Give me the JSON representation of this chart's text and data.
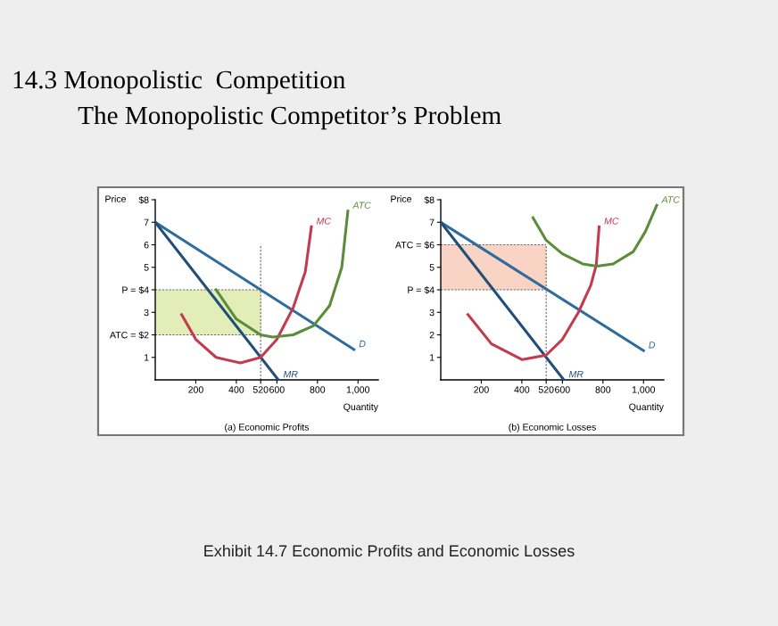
{
  "chart_data": [
    {
      "type": "line",
      "title": "14.3 Monopolistic  Competition",
      "subtitle": "The Monopolistic Competitor’s Problem",
      "xlabel": "Quantity",
      "ylabel": "Price",
      "xlim": [
        0,
        1100
      ],
      "ylim": [
        0,
        8
      ],
      "xticks": [
        200,
        400,
        520,
        600,
        800,
        {
          "value": 1000,
          "label": "1,000"
        }
      ],
      "yticks": [
        1,
        {
          "value": 2,
          "label": "ATC = $2"
        },
        3,
        {
          "value": 4,
          "label": "P = $4"
        },
        5,
        6,
        7,
        {
          "value": 8,
          "label": "$8"
        }
      ],
      "grid": false,
      "series": [
        {
          "name": "D",
          "color": "#2e6b9e",
          "x": [
            0,
            980
          ],
          "values": [
            7,
            1.35
          ]
        },
        {
          "name": "MR",
          "color": "#1f4e79",
          "x": [
            0,
            607
          ],
          "values": [
            7,
            0
          ]
        },
        {
          "name": "MC",
          "color": "#c23b4e",
          "x": [
            130,
            200,
            300,
            420,
            520,
            600,
            680,
            740,
            770
          ],
          "values": [
            2.9,
            1.8,
            1.0,
            0.75,
            1.0,
            1.8,
            3.2,
            4.8,
            6.8
          ]
        },
        {
          "name": "ATC",
          "color": "#5b8c3a",
          "x": [
            300,
            400,
            520,
            580,
            680,
            780,
            860,
            920,
            950
          ],
          "values": [
            4.0,
            2.7,
            2.0,
            1.9,
            2.0,
            2.4,
            3.3,
            5.0,
            7.5
          ]
        }
      ],
      "ref_lines": [
        {
          "axis": "x",
          "value": 520,
          "line_style": "dashed"
        },
        {
          "axis": "y",
          "value": 4,
          "line_style": "dashed"
        },
        {
          "axis": "y",
          "value": 2,
          "line_style": "dashed"
        }
      ],
      "bands": [
        {
          "axis": "y",
          "from": 2,
          "to": 4,
          "color": "#e3edb8"
        }
      ],
      "annotations": [
        "(a) Economic Profits"
      ]
    },
    {
      "type": "line",
      "xlabel": "Quantity",
      "ylabel": "Price",
      "xlim": [
        0,
        1100
      ],
      "ylim": [
        0,
        8
      ],
      "xticks": [
        200,
        400,
        520,
        600,
        800,
        {
          "value": 1000,
          "label": "1,000"
        }
      ],
      "yticks": [
        1,
        2,
        3,
        {
          "value": 4,
          "label": "P = $4"
        },
        5,
        {
          "value": 6,
          "label": "ATC = $6"
        },
        7,
        {
          "value": 8,
          "label": "$8"
        }
      ],
      "grid": false,
      "series": [
        {
          "name": "D",
          "color": "#2e6b9e",
          "x": [
            0,
            1000
          ],
          "values": [
            7,
            1.3
          ]
        },
        {
          "name": "MR",
          "color": "#1f4e79",
          "x": [
            0,
            607
          ],
          "values": [
            7,
            0
          ]
        },
        {
          "name": "MC",
          "color": "#c23b4e",
          "x": [
            134,
            250,
            402,
            520,
            600,
            679,
            740,
            767,
            781
          ],
          "values": [
            2.9,
            1.6,
            0.9,
            1.1,
            1.8,
            3.0,
            4.2,
            5.1,
            6.8
          ]
        },
        {
          "name": "ATC",
          "color": "#5b8c3a",
          "x": [
            455,
            520,
            600,
            700,
            770,
            850,
            950,
            1010,
            1065
          ],
          "values": [
            7.2,
            6.2,
            5.6,
            5.15,
            5.05,
            5.15,
            5.7,
            6.6,
            7.75
          ]
        }
      ],
      "ref_lines": [
        {
          "axis": "x",
          "value": 520,
          "line_style": "dashed"
        },
        {
          "axis": "y",
          "value": 4,
          "line_style": "dashed"
        },
        {
          "axis": "y",
          "value": 6,
          "line_style": "dashed"
        }
      ],
      "bands": [
        {
          "axis": "y",
          "from": 4,
          "to": 6,
          "color": "#f9d3c3"
        }
      ],
      "annotations": [
        "(b) Economic Losses",
        "Exhibit 14.7 Economic Profits and Economic Losses"
      ]
    }
  ]
}
